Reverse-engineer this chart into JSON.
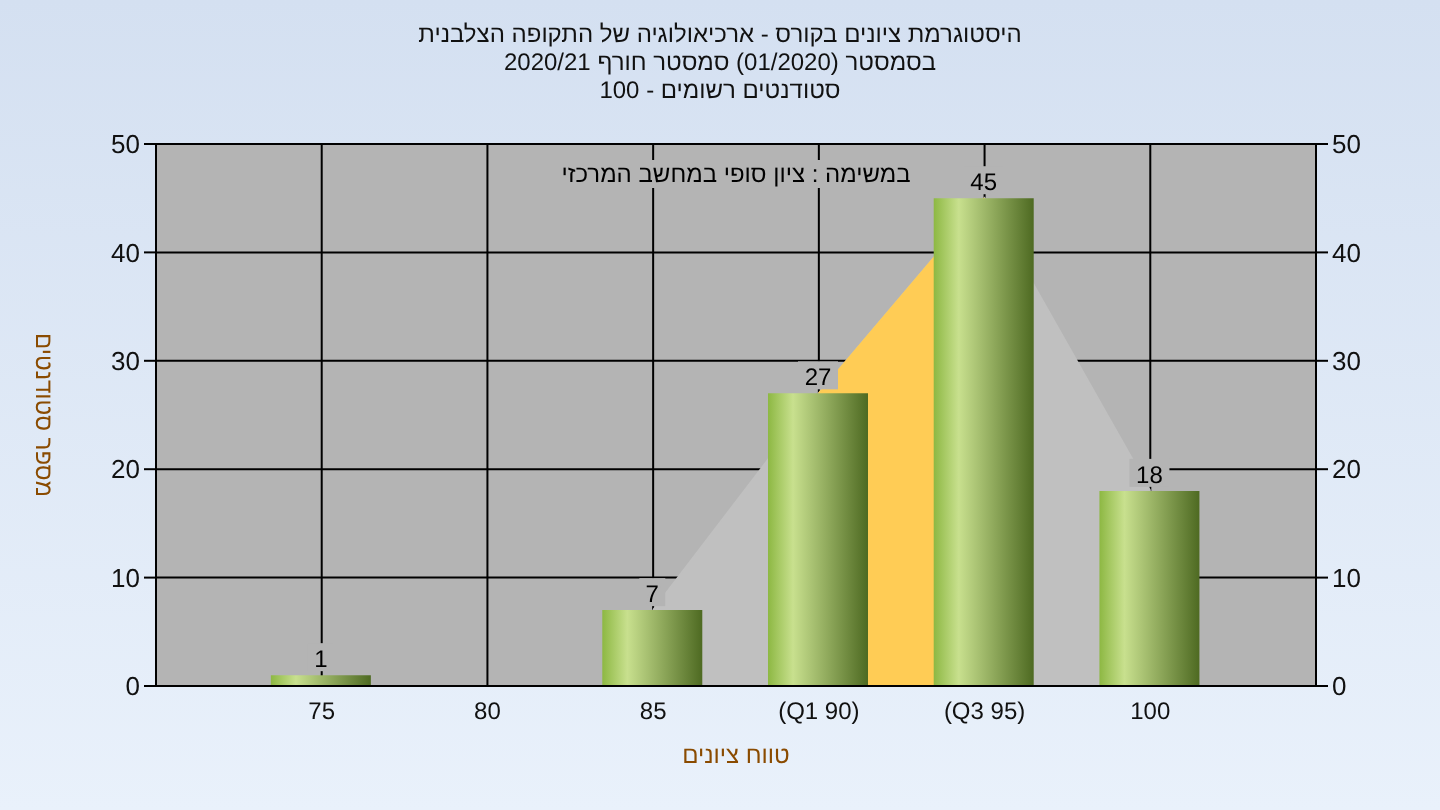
{
  "chart_data": {
    "type": "bar",
    "title": "היסטוגרמת ציונים בקורס - ארכיאולוגיה של התקופה הצלבנית",
    "subtitle": "בסמסטר  (01/2020)  סמסטר חורף  2020/21\nסטודנטים רשומים - 100",
    "xlabel": "טווח ציונים",
    "ylabel": "מספר סטודנטים",
    "annotations": [
      "במשימה : ציון סופי במחשב המרכזי"
    ],
    "categories": [
      "75",
      "80",
      "85",
      "(Q1 90)",
      "(Q3 95)",
      "100"
    ],
    "series": [
      {
        "type": "area",
        "color": "#c0c0c0",
        "values": [
          null,
          null,
          7,
          27,
          45,
          18
        ]
      },
      {
        "type": "area",
        "color": "#ffcc55",
        "values": [
          null,
          null,
          null,
          27,
          45,
          null
        ]
      },
      {
        "type": "bar",
        "color": "#8db843",
        "values": [
          1,
          0,
          7,
          27,
          45,
          18
        ],
        "value_labels": [
          "1",
          null,
          "7",
          "27",
          "45",
          "18"
        ]
      }
    ],
    "ylim": [
      0,
      50
    ],
    "yticks": [
      0,
      10,
      20,
      30,
      40,
      50
    ],
    "y2lim": [
      0,
      50
    ],
    "y2ticks": [
      0,
      10,
      20,
      30,
      40,
      50
    ],
    "grid": true,
    "legend": false
  }
}
